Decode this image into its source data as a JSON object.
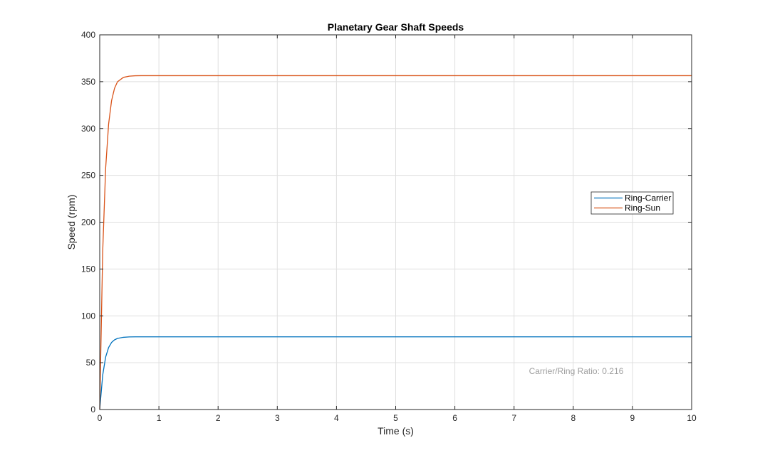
{
  "colors": {
    "ring_carrier": "#0072BD",
    "ring_sun": "#D95319",
    "grid": "#dfdfdf",
    "axes": "#262626",
    "annotation": "#a0a0a0"
  },
  "chart_data": {
    "type": "line",
    "title": "Planetary Gear Shaft Speeds",
    "xlabel": "Time (s)",
    "ylabel": "Speed (rpm)",
    "xlim": [
      0,
      10
    ],
    "ylim": [
      0,
      400
    ],
    "xticks": [
      0,
      1,
      2,
      3,
      4,
      5,
      6,
      7,
      8,
      9,
      10
    ],
    "yticks": [
      0,
      50,
      100,
      150,
      200,
      250,
      300,
      350,
      400
    ],
    "xtick_labels": [
      "0",
      "1",
      "2",
      "3",
      "4",
      "5",
      "6",
      "7",
      "8",
      "9",
      "10"
    ],
    "ytick_labels": [
      "0",
      "50",
      "100",
      "150",
      "200",
      "250",
      "300",
      "350",
      "400"
    ],
    "grid": true,
    "legend_position": "right, upper-middle",
    "series": [
      {
        "name": "Ring-Carrier",
        "color": "#0072BD",
        "x": [
          0,
          0.05,
          0.1,
          0.15,
          0.2,
          0.25,
          0.3,
          0.4,
          0.5,
          0.6,
          0.7,
          0.8,
          1.0,
          1.5,
          2,
          3,
          4,
          5,
          6,
          7,
          8,
          9,
          10
        ],
        "y": [
          0,
          36.6,
          56.0,
          66.2,
          71.6,
          74.4,
          75.9,
          77.1,
          77.5,
          77.6,
          77.6,
          77.6,
          77.6,
          77.6,
          77.6,
          77.6,
          77.6,
          77.6,
          77.6,
          77.6,
          77.6,
          77.6,
          77.6
        ]
      },
      {
        "name": "Ring-Sun",
        "color": "#D95319",
        "x": [
          0,
          0.05,
          0.1,
          0.15,
          0.2,
          0.25,
          0.3,
          0.4,
          0.5,
          0.6,
          0.7,
          0.8,
          1.0,
          1.5,
          2,
          3,
          4,
          5,
          6,
          7,
          8,
          9,
          10
        ],
        "y": [
          0,
          168.2,
          257.5,
          304.7,
          329.7,
          342.9,
          349.9,
          354.6,
          355.9,
          356.3,
          356.4,
          356.4,
          356.4,
          356.4,
          356.4,
          356.4,
          356.4,
          356.4,
          356.4,
          356.4,
          356.4,
          356.4,
          356.4
        ]
      }
    ],
    "annotations": [
      {
        "text": "Carrier/Ring Ratio: 0.216",
        "x": 8.05,
        "y": 41
      }
    ]
  }
}
